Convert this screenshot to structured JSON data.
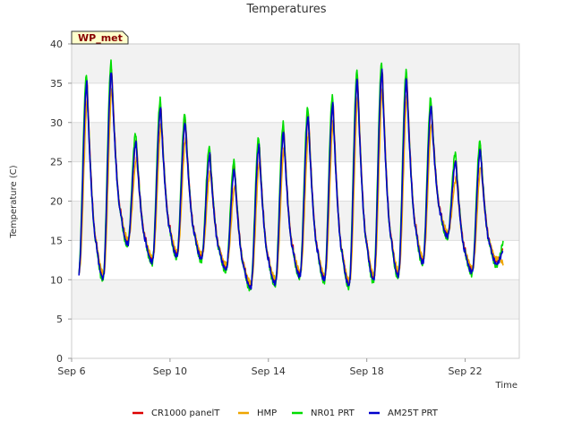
{
  "chart_data": {
    "type": "line",
    "title": "Temperatures",
    "xlabel": "Time",
    "ylabel": "Temperature (C)",
    "ylim": [
      0,
      40
    ],
    "yticks": [
      0,
      5,
      10,
      15,
      20,
      25,
      30,
      35,
      40
    ],
    "xlim_days": [
      6,
      24.2
    ],
    "xticks": [
      {
        "day": 6,
        "label": "Sep 6"
      },
      {
        "day": 10,
        "label": "Sep 10"
      },
      {
        "day": 14,
        "label": "Sep 14"
      },
      {
        "day": 18,
        "label": "Sep 18"
      },
      {
        "day": 22,
        "label": "Sep 22"
      }
    ],
    "grid": true,
    "legend_position": "bottom",
    "station_badge": "WP_met",
    "day_extremes": {
      "days": [
        6,
        7,
        8,
        9,
        10,
        11,
        12,
        13,
        14,
        15,
        16,
        17,
        18,
        19,
        20,
        21,
        22,
        23
      ],
      "min_temp": [
        10.5,
        10.2,
        14.5,
        12.3,
        13.0,
        12.7,
        11.3,
        9.0,
        9.5,
        10.5,
        10.0,
        9.3,
        10.0,
        10.5,
        12.2,
        15.5,
        11.0,
        12.0
      ],
      "max_temp": [
        35.0,
        36.5,
        27.5,
        31.8,
        30.0,
        25.8,
        24.0,
        27.0,
        28.8,
        30.8,
        32.3,
        35.5,
        36.5,
        35.5,
        32.0,
        25.0,
        26.5,
        null
      ]
    },
    "series": [
      {
        "name": "CR1000 panelT",
        "color": "#dd0000",
        "max_offset": 0.3,
        "min_offset": 0.3,
        "phase": 0.01
      },
      {
        "name": "HMP",
        "color": "#eea500",
        "max_offset": -2.0,
        "min_offset": 0.6,
        "phase": 0.03
      },
      {
        "name": "NR01 PRT",
        "color": "#00dd00",
        "max_offset": 1.2,
        "min_offset": -0.3,
        "phase": -0.01
      },
      {
        "name": "AM25T PRT",
        "color": "#0000cc",
        "max_offset": 0.0,
        "min_offset": 0.0,
        "phase": 0.0
      }
    ]
  }
}
